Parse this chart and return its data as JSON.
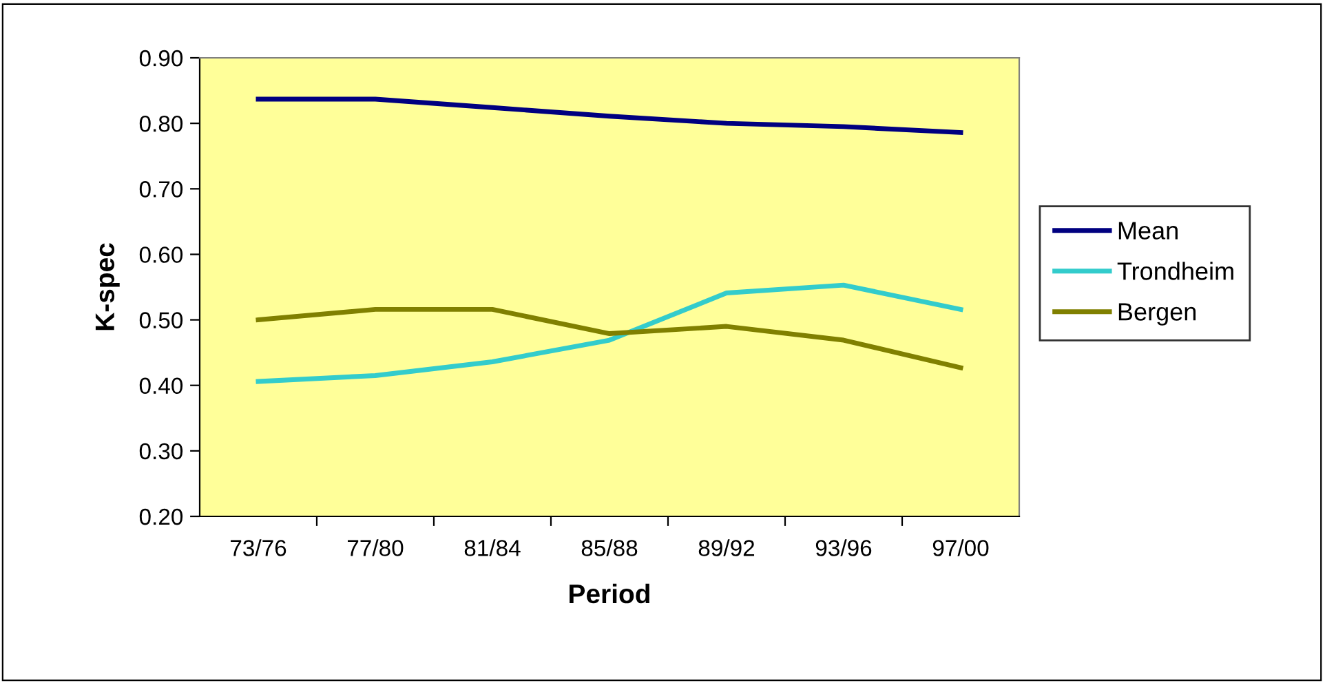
{
  "chart_data": {
    "type": "line",
    "xlabel": "Period",
    "ylabel": "K-spec",
    "categories": [
      "73/76",
      "77/80",
      "81/84",
      "85/88",
      "89/92",
      "93/96",
      "97/00"
    ],
    "series": [
      {
        "name": "Mean",
        "color": "#000080",
        "values": [
          0.837,
          0.837,
          0.824,
          0.811,
          0.8,
          0.795,
          0.786
        ]
      },
      {
        "name": "Trondheim",
        "color": "#33cccc",
        "values": [
          0.406,
          0.415,
          0.436,
          0.469,
          0.541,
          0.553,
          0.516
        ]
      },
      {
        "name": "Bergen",
        "color": "#808000",
        "values": [
          0.5,
          0.516,
          0.516,
          0.479,
          0.49,
          0.469,
          0.427
        ]
      }
    ],
    "ylim": [
      0.2,
      0.9
    ],
    "yticks": [
      {
        "value": 0.2,
        "label": "0.20"
      },
      {
        "value": 0.3,
        "label": "0.30"
      },
      {
        "value": 0.4,
        "label": "0.40"
      },
      {
        "value": 0.5,
        "label": "0.50"
      },
      {
        "value": 0.6,
        "label": "0.60"
      },
      {
        "value": 0.7,
        "label": "0.70"
      },
      {
        "value": 0.8,
        "label": "0.80"
      },
      {
        "value": 0.9,
        "label": "0.90"
      }
    ],
    "grid": false,
    "legend": "right",
    "marker": "none",
    "line_style": "solid"
  }
}
